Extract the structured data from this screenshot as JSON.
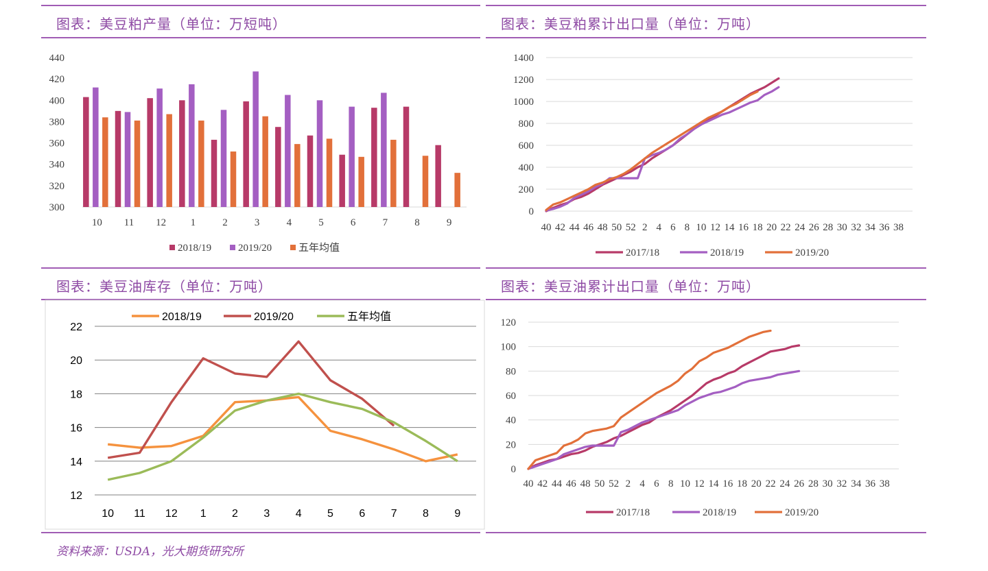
{
  "panels": [
    {
      "title": "图表：美豆粕产量（单位：万短吨）"
    },
    {
      "title": "图表：美豆粕累计出口量（单位：万吨）"
    },
    {
      "title": "图表：美豆油库存（单位：万吨）"
    },
    {
      "title": "图表：美豆油累计出口量（单位：万吨）"
    }
  ],
  "source": "资料来源：USDA，光大期货研究所",
  "chart_data": [
    {
      "type": "bar",
      "title": "美豆粕产量（单位：万短吨）",
      "categories": [
        "10",
        "11",
        "12",
        "1",
        "2",
        "3",
        "4",
        "5",
        "6",
        "7",
        "8",
        "9"
      ],
      "ylim": [
        300,
        440
      ],
      "yticks": [
        300,
        320,
        340,
        360,
        380,
        400,
        420,
        440
      ],
      "grid": false,
      "legend": "bottom",
      "series": [
        {
          "name": "2018/19",
          "color": "#b73a68",
          "values": [
            403,
            390,
            402,
            400,
            363,
            399,
            375,
            367,
            349,
            393,
            394,
            358
          ]
        },
        {
          "name": "2019/20",
          "color": "#a45fc2",
          "values": [
            412,
            389,
            411,
            415,
            391,
            427,
            405,
            400,
            394,
            407,
            null,
            null
          ]
        },
        {
          "name": "五年均值",
          "color": "#e2703a",
          "values": [
            384,
            381,
            387,
            381,
            352,
            385,
            359,
            364,
            347,
            363,
            348,
            332
          ]
        }
      ]
    },
    {
      "type": "line",
      "title": "美豆粕累计出口量（单位：万吨）",
      "x_ticks": [
        "40",
        "42",
        "44",
        "46",
        "48",
        "50",
        "52",
        "2",
        "4",
        "6",
        "8",
        "10",
        "12",
        "14",
        "16",
        "18",
        "20",
        "22",
        "24",
        "26",
        "28",
        "30",
        "32",
        "34",
        "36",
        "38"
      ],
      "ylim": [
        0,
        1400
      ],
      "yticks": [
        0,
        200,
        400,
        600,
        800,
        1000,
        1200,
        1400
      ],
      "grid": true,
      "legend": "bottom",
      "series": [
        {
          "name": "2017/18",
          "color": "#b73a68",
          "values": [
            0,
            30,
            55,
            75,
            110,
            130,
            160,
            200,
            240,
            270,
            300,
            330,
            360,
            400,
            430,
            480,
            520,
            560,
            600,
            650,
            700,
            750,
            790,
            830,
            870,
            910,
            950,
            990,
            1030,
            1070,
            1100,
            1130,
            1170,
            1210
          ]
        },
        {
          "name": "2018/19",
          "color": "#a45fc2",
          "values": [
            5,
            20,
            40,
            70,
            120,
            150,
            180,
            220,
            250,
            300,
            300,
            300,
            300,
            300,
            480,
            510,
            530,
            560,
            600,
            660,
            700,
            750,
            790,
            820,
            850,
            880,
            900,
            930,
            960,
            990,
            1010,
            1060,
            1090,
            1130
          ]
        },
        {
          "name": "2019/20",
          "color": "#e2703a",
          "values": [
            10,
            60,
            80,
            110,
            140,
            170,
            200,
            240,
            260,
            290,
            310,
            340,
            380,
            430,
            480,
            530,
            570,
            610,
            650,
            690,
            730,
            770,
            810,
            850,
            880,
            910,
            950,
            980,
            1020,
            1060,
            1090
          ]
        }
      ]
    },
    {
      "type": "line",
      "title": "美豆油库存（单位：万吨）",
      "categories": [
        "10",
        "11",
        "12",
        "1",
        "2",
        "3",
        "4",
        "5",
        "6",
        "7",
        "8",
        "9"
      ],
      "ylim": [
        12,
        22
      ],
      "yticks": [
        12,
        14,
        16,
        18,
        20,
        22
      ],
      "grid": true,
      "legend": "top",
      "series": [
        {
          "name": "2018/19",
          "color": "#f5923e",
          "values": [
            15.0,
            14.8,
            14.9,
            15.5,
            17.5,
            17.6,
            17.8,
            15.8,
            15.3,
            14.7,
            14.0,
            14.4
          ]
        },
        {
          "name": "2019/20",
          "color": "#c0504d",
          "values": [
            14.2,
            14.5,
            17.5,
            20.1,
            19.2,
            19.0,
            21.1,
            18.8,
            17.7,
            16.1,
            null,
            null
          ]
        },
        {
          "name": "五年均值",
          "color": "#9bbb59",
          "values": [
            12.9,
            13.3,
            14.0,
            15.4,
            17.0,
            17.6,
            18.0,
            17.5,
            17.1,
            16.3,
            15.2,
            14.0
          ]
        }
      ]
    },
    {
      "type": "line",
      "title": "美豆油累计出口量（单位：万吨）",
      "x_ticks": [
        "40",
        "42",
        "44",
        "46",
        "48",
        "50",
        "52",
        "2",
        "4",
        "6",
        "8",
        "10",
        "12",
        "14",
        "16",
        "18",
        "20",
        "22",
        "24",
        "26",
        "28",
        "30",
        "32",
        "34",
        "36",
        "38"
      ],
      "ylim": [
        0,
        120
      ],
      "yticks": [
        0,
        20,
        40,
        60,
        80,
        100,
        120
      ],
      "grid": true,
      "legend": "bottom",
      "series": [
        {
          "name": "2017/18",
          "color": "#b73a68",
          "values": [
            0,
            3,
            5,
            7,
            8,
            10,
            12,
            13,
            15,
            18,
            20,
            22,
            25,
            27,
            30,
            33,
            36,
            38,
            42,
            45,
            48,
            52,
            56,
            60,
            65,
            70,
            73,
            75,
            78,
            80,
            84,
            87,
            90,
            93,
            96,
            97,
            98,
            100,
            101
          ]
        },
        {
          "name": "2018/19",
          "color": "#a45fc2",
          "values": [
            0,
            2,
            4,
            6,
            8,
            12,
            14,
            16,
            18,
            19,
            19,
            19,
            19,
            30,
            32,
            35,
            38,
            40,
            42,
            44,
            46,
            48,
            52,
            55,
            58,
            60,
            62,
            63,
            65,
            67,
            70,
            72,
            73,
            74,
            75,
            77,
            78,
            79,
            80
          ]
        },
        {
          "name": "2019/20",
          "color": "#e2703a",
          "values": [
            0,
            7,
            9,
            11,
            13,
            19,
            21,
            24,
            29,
            31,
            32,
            33,
            35,
            42,
            46,
            50,
            54,
            58,
            62,
            65,
            68,
            72,
            78,
            82,
            88,
            91,
            95,
            97,
            99,
            102,
            105,
            108,
            110,
            112,
            113
          ]
        }
      ]
    }
  ]
}
